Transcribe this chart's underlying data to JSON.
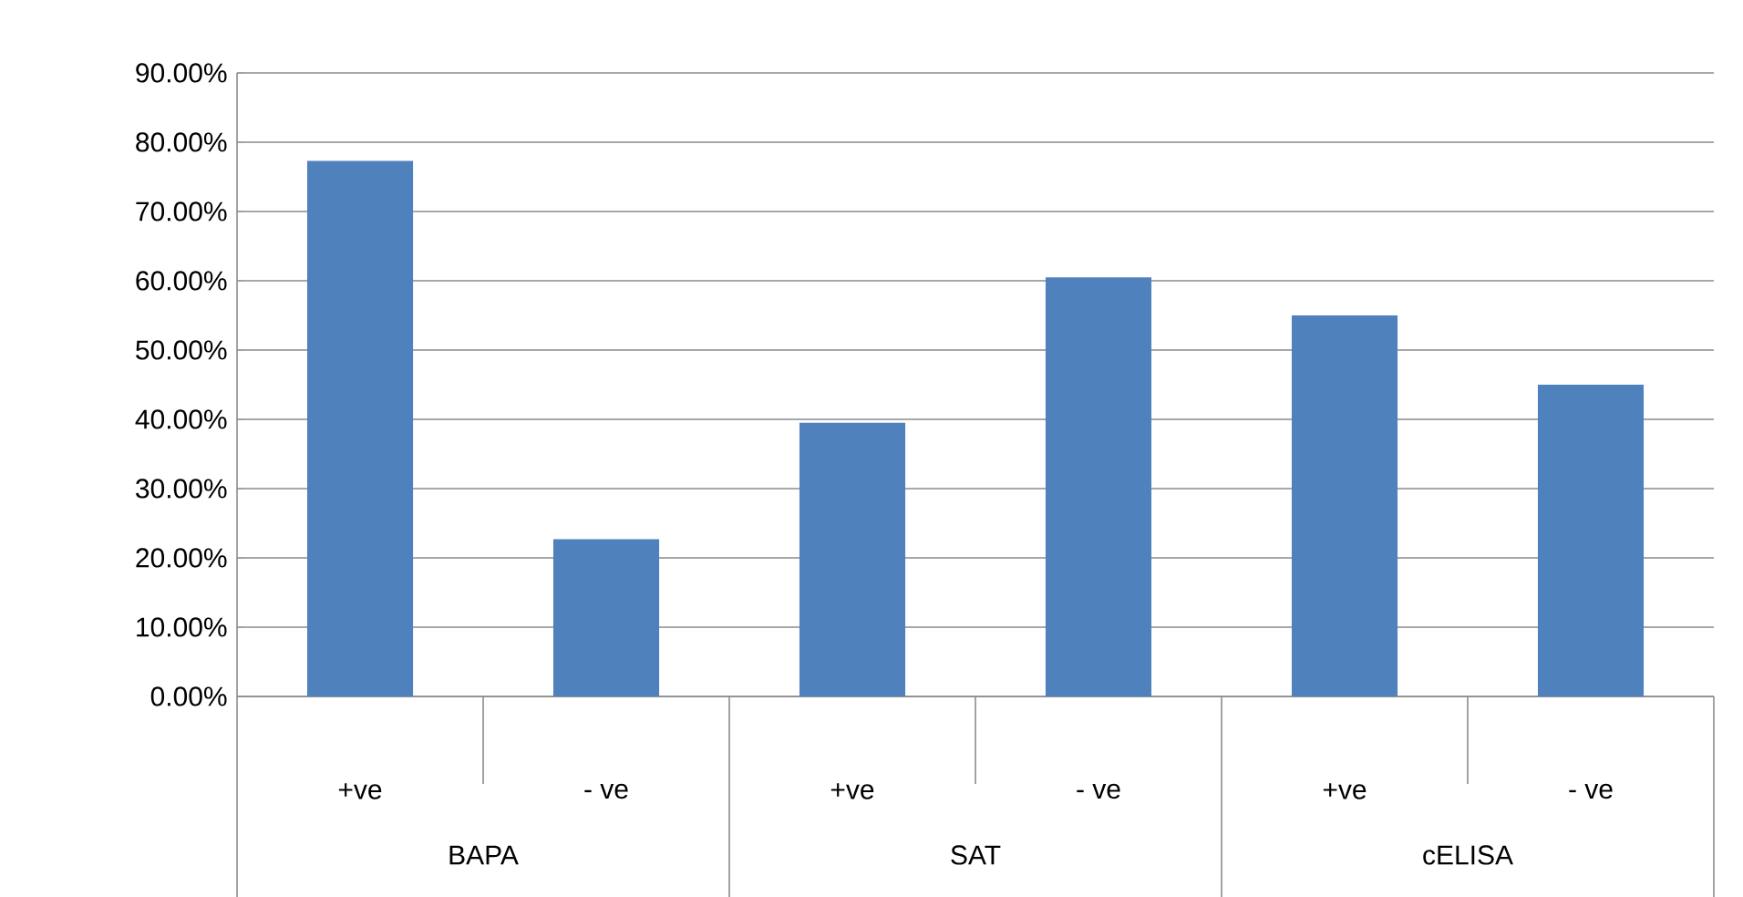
{
  "chart_data": {
    "type": "bar",
    "categories": [
      "+ve",
      "- ve",
      "+ve",
      "- ve",
      "+ve",
      "- ve"
    ],
    "values": [
      77.3,
      22.7,
      39.5,
      60.5,
      55.0,
      45.0
    ],
    "color": "#4f81bd",
    "ylim": [
      0,
      90
    ],
    "yticks": [
      {
        "value": 0,
        "label": "0.00%"
      },
      {
        "value": 10,
        "label": "10.00%"
      },
      {
        "value": 20,
        "label": "20.00%"
      },
      {
        "value": 30,
        "label": "30.00%"
      },
      {
        "value": 40,
        "label": "40.00%"
      },
      {
        "value": 50,
        "label": "50.00%"
      },
      {
        "value": 60,
        "label": "60.00%"
      },
      {
        "value": 70,
        "label": "70.00%"
      },
      {
        "value": 80,
        "label": "80.00%"
      },
      {
        "value": 90,
        "label": "90.00%"
      }
    ],
    "annotations": [
      "BAPA",
      "SAT",
      "cELISA"
    ],
    "grid": "y"
  }
}
